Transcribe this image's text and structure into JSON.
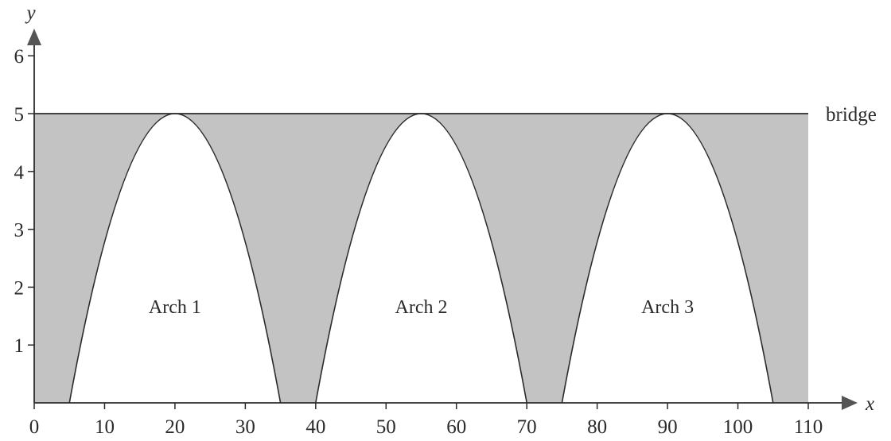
{
  "axes": {
    "x_label": "x",
    "y_label": "y",
    "x_ticks": [
      0,
      10,
      20,
      30,
      40,
      50,
      60,
      70,
      80,
      90,
      100,
      110
    ],
    "y_ticks": [
      1,
      2,
      3,
      4,
      5,
      6
    ],
    "x_range": [
      0,
      110
    ],
    "y_range": [
      0,
      6
    ]
  },
  "bridge": {
    "label": "bridge",
    "y": 5,
    "x_start": 0,
    "x_end": 110
  },
  "arches": [
    {
      "label": "Arch 1",
      "x_start": 5,
      "peak_x": 20,
      "x_end": 35,
      "peak_y": 5
    },
    {
      "label": "Arch 2",
      "x_start": 40,
      "peak_x": 55,
      "x_end": 70,
      "peak_y": 5
    },
    {
      "label": "Arch 3",
      "x_start": 75,
      "peak_x": 90,
      "x_end": 105,
      "peak_y": 5
    }
  ],
  "colors": {
    "shade": "#c3c3c3",
    "ink": "#2b2b2b",
    "arch_fill": "#ffffff"
  }
}
